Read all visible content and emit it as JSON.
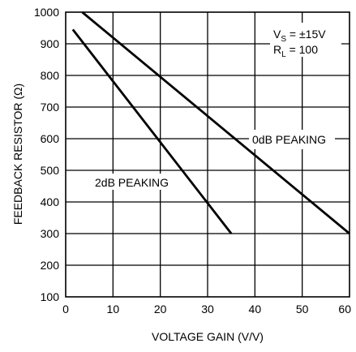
{
  "chart_data": {
    "type": "line",
    "xlabel": "VOLTAGE GAIN (V/V)",
    "ylabel": "FEEDBACK RESISTOR (Ω)",
    "xlim": [
      0,
      60
    ],
    "ylim": [
      100,
      1000
    ],
    "xticks": [
      "0",
      "10",
      "20",
      "30",
      "40",
      "50",
      "60"
    ],
    "yticks": [
      "100",
      "200",
      "300",
      "400",
      "500",
      "600",
      "700",
      "800",
      "900",
      "1000"
    ],
    "grid": true,
    "series": [
      {
        "name": "0dB PEAKING",
        "x": [
          3.5,
          60
        ],
        "y": [
          1000,
          300
        ]
      },
      {
        "name": "2dB PEAKING",
        "x": [
          1.5,
          35
        ],
        "y": [
          945,
          300
        ]
      }
    ],
    "annotations": {
      "vs_prefix": "V",
      "vs_sub": "S",
      "vs_value": " = ±15V",
      "rl_prefix": "R",
      "rl_sub": "L",
      "rl_value": " = 100"
    }
  }
}
